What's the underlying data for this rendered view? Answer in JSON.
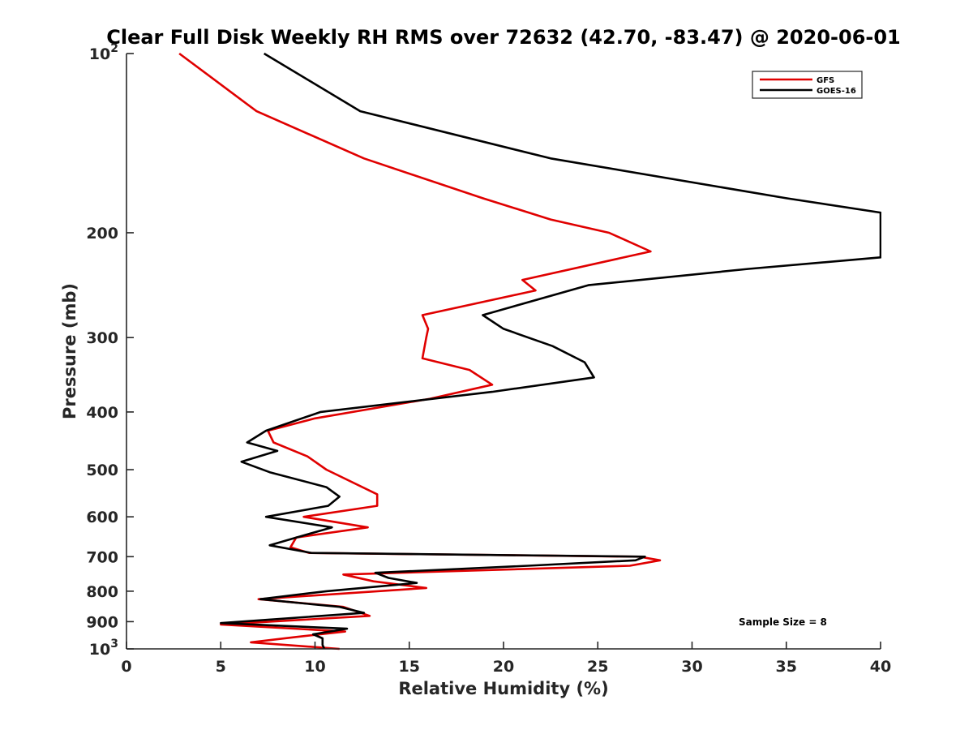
{
  "chart_data": {
    "type": "line",
    "title": "Clear Full Disk Weekly RH RMS over 72632 (42.70, -83.47) @ 2020-06-01",
    "xlabel": "Relative Humidity (%)",
    "ylabel": "Pressure (mb)",
    "xlim": [
      0,
      40
    ],
    "ylim": [
      100,
      1000
    ],
    "y_scale": "log",
    "y_reversed": true,
    "grid": false,
    "legend_position": "top-right",
    "x_ticks": [
      "0",
      "5",
      "10",
      "15",
      "20",
      "25",
      "30",
      "35",
      "40"
    ],
    "y_ticks": [
      {
        "value": 100,
        "base": "10",
        "exp": "2"
      },
      {
        "value": 200,
        "label": "200"
      },
      {
        "value": 300,
        "label": "300"
      },
      {
        "value": 400,
        "label": "400"
      },
      {
        "value": 500,
        "label": "500"
      },
      {
        "value": 600,
        "label": "600"
      },
      {
        "value": 700,
        "label": "700"
      },
      {
        "value": 800,
        "label": "800"
      },
      {
        "value": 900,
        "label": "900"
      },
      {
        "value": 1000,
        "base": "10",
        "exp": "3"
      }
    ],
    "annotation": "Sample Size = 8",
    "series": [
      {
        "name": "GFS",
        "color": "#e00000",
        "points": [
          [
            2.8,
            100
          ],
          [
            6.9,
            125
          ],
          [
            12.6,
            150
          ],
          [
            18.9,
            175
          ],
          [
            22.5,
            190
          ],
          [
            25.6,
            200
          ],
          [
            27.8,
            215
          ],
          [
            21.0,
            240
          ],
          [
            21.7,
            250
          ],
          [
            15.7,
            275
          ],
          [
            16.0,
            290
          ],
          [
            15.9,
            300
          ],
          [
            15.7,
            325
          ],
          [
            18.2,
            340
          ],
          [
            19.4,
            360
          ],
          [
            16.1,
            380
          ],
          [
            10.0,
            410
          ],
          [
            7.5,
            430
          ],
          [
            7.8,
            450
          ],
          [
            9.6,
            475
          ],
          [
            10.6,
            500
          ],
          [
            13.3,
            550
          ],
          [
            13.3,
            575
          ],
          [
            9.4,
            600
          ],
          [
            12.8,
            625
          ],
          [
            9.0,
            650
          ],
          [
            8.7,
            675
          ],
          [
            9.7,
            690
          ],
          [
            27.2,
            700
          ],
          [
            28.3,
            710
          ],
          [
            26.7,
            725
          ],
          [
            11.5,
            750
          ],
          [
            13.1,
            770
          ],
          [
            15.9,
            790
          ],
          [
            7.0,
            825
          ],
          [
            11.5,
            850
          ],
          [
            12.9,
            880
          ],
          [
            5.0,
            910
          ],
          [
            11.6,
            935
          ],
          [
            9.0,
            955
          ],
          [
            6.6,
            975
          ],
          [
            11.3,
            1000
          ]
        ]
      },
      {
        "name": "GOES-16",
        "color": "#000000",
        "points": [
          [
            7.3,
            100
          ],
          [
            12.4,
            125
          ],
          [
            22.5,
            150
          ],
          [
            35.0,
            175
          ],
          [
            40.0,
            185
          ],
          [
            40.0,
            220
          ],
          [
            33.0,
            230
          ],
          [
            24.5,
            245
          ],
          [
            18.9,
            275
          ],
          [
            20.0,
            290
          ],
          [
            22.6,
            310
          ],
          [
            24.3,
            330
          ],
          [
            24.8,
            350
          ],
          [
            19.4,
            370
          ],
          [
            10.3,
            400
          ],
          [
            7.4,
            430
          ],
          [
            6.4,
            450
          ],
          [
            8.0,
            465
          ],
          [
            6.1,
            485
          ],
          [
            7.6,
            505
          ],
          [
            10.6,
            535
          ],
          [
            11.3,
            555
          ],
          [
            10.7,
            575
          ],
          [
            7.4,
            600
          ],
          [
            10.9,
            625
          ],
          [
            9.0,
            650
          ],
          [
            7.6,
            670
          ],
          [
            9.8,
            690
          ],
          [
            27.5,
            700
          ],
          [
            27.0,
            710
          ],
          [
            21.3,
            725
          ],
          [
            13.2,
            745
          ],
          [
            13.9,
            760
          ],
          [
            15.4,
            775
          ],
          [
            10.6,
            800
          ],
          [
            7.1,
            825
          ],
          [
            11.3,
            850
          ],
          [
            12.6,
            870
          ],
          [
            5.0,
            905
          ],
          [
            11.7,
            925
          ],
          [
            9.9,
            945
          ],
          [
            10.4,
            960
          ],
          [
            10.4,
            985
          ],
          [
            10.5,
            1000
          ]
        ]
      }
    ]
  }
}
